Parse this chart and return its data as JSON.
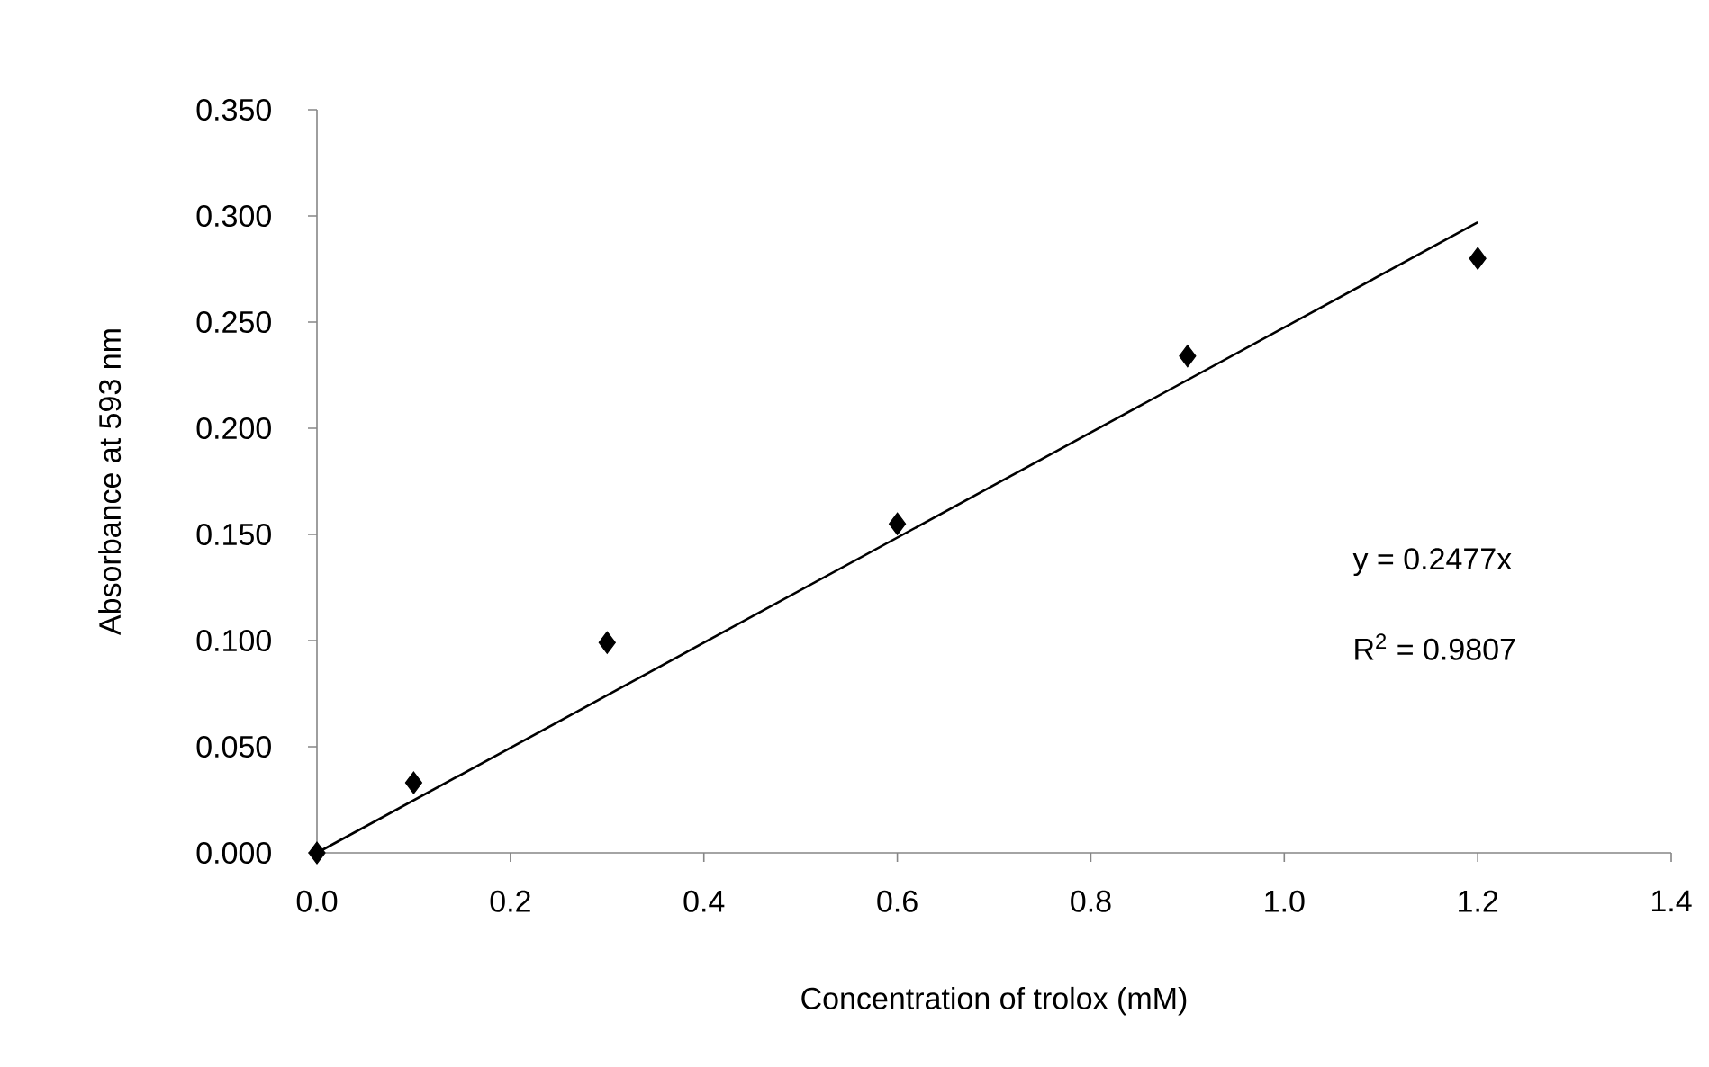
{
  "chart_data": {
    "type": "scatter",
    "xlabel": "Concentration of trolox (mM)",
    "ylabel": "Absorbance at 593 nm",
    "annotations": [
      "y = 0.2477x",
      "R$^{2}$ = 0.9807"
    ],
    "xlim": [
      0,
      1.4
    ],
    "ylim": [
      0,
      0.35
    ],
    "xticks": [
      {
        "value": 0,
        "label": "0.0"
      },
      {
        "value": 0.2,
        "label": "0.2"
      },
      {
        "value": 0.4,
        "label": "0.4"
      },
      {
        "value": 0.6,
        "label": "0.6"
      },
      {
        "value": 0.8,
        "label": "0.8"
      },
      {
        "value": 1.0,
        "label": "1.0"
      },
      {
        "value": 1.2,
        "label": "1.2"
      },
      {
        "value": 1.4,
        "label": "1.4"
      }
    ],
    "yticks": [
      {
        "value": 0,
        "label": "0.000"
      },
      {
        "value": 0.05,
        "label": "0.050"
      },
      {
        "value": 0.1,
        "label": "0.100"
      },
      {
        "value": 0.15,
        "label": "0.150"
      },
      {
        "value": 0.2,
        "label": "0.200"
      },
      {
        "value": 0.25,
        "label": "0.250"
      },
      {
        "value": 0.3,
        "label": "0.300"
      },
      {
        "value": 0.35,
        "label": "0.350"
      }
    ],
    "marker": "diamond",
    "series": [
      {
        "color": "#000000",
        "x": [
          0,
          0.1,
          0.3,
          0.6,
          0.9,
          1.2
        ],
        "values": [
          0,
          0.033,
          0.099,
          0.155,
          0.234,
          0.28
        ]
      },
      {
        "type": "line",
        "color": "#000000",
        "x": [
          0,
          1.2
        ],
        "values": [
          0,
          0.297
        ],
        "marker": "none",
        "line_style": "solid"
      }
    ]
  }
}
